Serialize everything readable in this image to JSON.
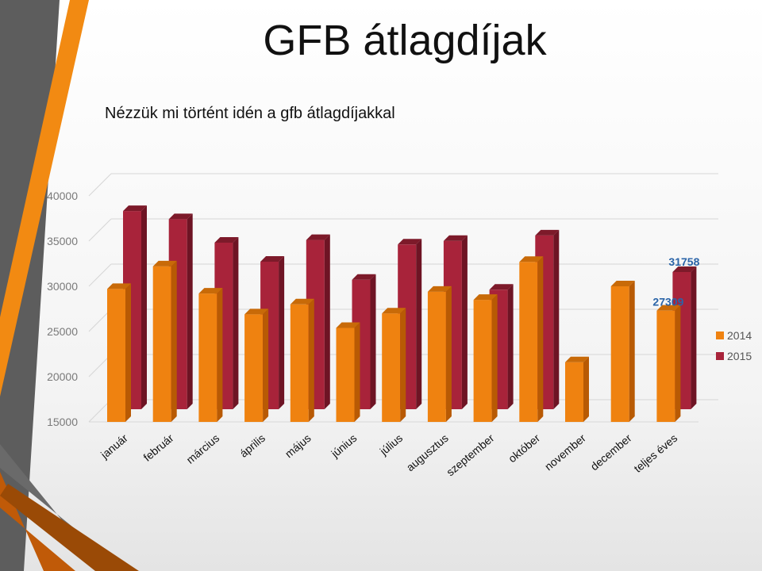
{
  "title": "GFB átlagdíjak",
  "subtitle": "Nézzük mi történt idén a gfb átlagdíjakkal",
  "colors": {
    "s2014": "#ef8210",
    "s2014_side": "#b85a04",
    "s2014_top": "#c86a08",
    "s2015": "#a8233a",
    "s2015_side": "#6e1424",
    "s2015_top": "#7d1a2a",
    "data_label": "#2a64a8"
  },
  "chart_data": {
    "type": "bar",
    "categories": [
      "január",
      "február",
      "március",
      "április",
      "május",
      "június",
      "július",
      "augusztus",
      "szeptember",
      "október",
      "november",
      "december",
      "teljes éves"
    ],
    "series": [
      {
        "name": "2014",
        "values": [
          29700,
          32200,
          29200,
          26900,
          28000,
          25400,
          27000,
          29400,
          28500,
          32700,
          21600,
          30000,
          27309
        ]
      },
      {
        "name": "2015",
        "values": [
          38500,
          37600,
          35000,
          32900,
          35300,
          30900,
          34800,
          35200,
          29800,
          35800,
          null,
          null,
          31758
        ]
      }
    ],
    "data_labels": [
      {
        "series": "2014",
        "category": "teljes éves",
        "value": "27309"
      },
      {
        "series": "2015",
        "category": "teljes éves",
        "value": "31758"
      }
    ],
    "yticks": [
      "15000",
      "20000",
      "25000",
      "30000",
      "35000",
      "40000"
    ],
    "ylim": [
      15000,
      40000
    ],
    "grid": true,
    "legend": "right",
    "style": "3d-clustered"
  }
}
